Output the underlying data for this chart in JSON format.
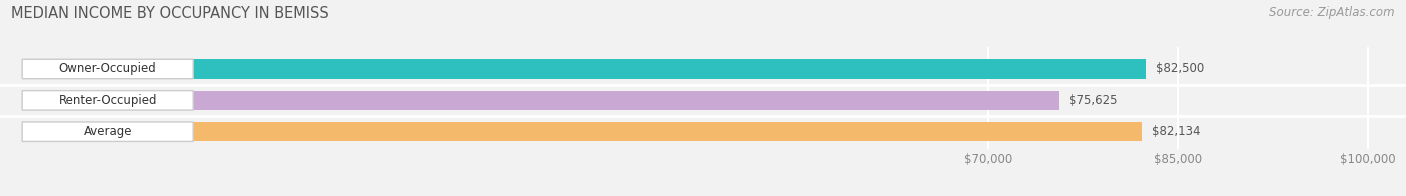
{
  "title": "MEDIAN INCOME BY OCCUPANCY IN BEMISS",
  "source": "Source: ZipAtlas.com",
  "categories": [
    "Owner-Occupied",
    "Renter-Occupied",
    "Average"
  ],
  "values": [
    82500,
    75625,
    82134
  ],
  "bar_colors": [
    "#2ebfbf",
    "#c9a8d4",
    "#f5b96b"
  ],
  "value_labels": [
    "$82,500",
    "$75,625",
    "$82,134"
  ],
  "xlim": [
    -8000,
    103000
  ],
  "xticks": [
    70000,
    85000,
    100000
  ],
  "xtick_labels": [
    "$70,000",
    "$85,000",
    "$100,000"
  ],
  "bg_color": "#f2f2f2",
  "plot_bg_color": "#f2f2f2",
  "title_fontsize": 10.5,
  "bar_height": 0.62,
  "label_fontsize": 8.5,
  "source_fontsize": 8.5,
  "grid_color": "#ffffff",
  "bar_label_color": "#333333",
  "value_label_color": "#555555",
  "tick_color": "#888888"
}
